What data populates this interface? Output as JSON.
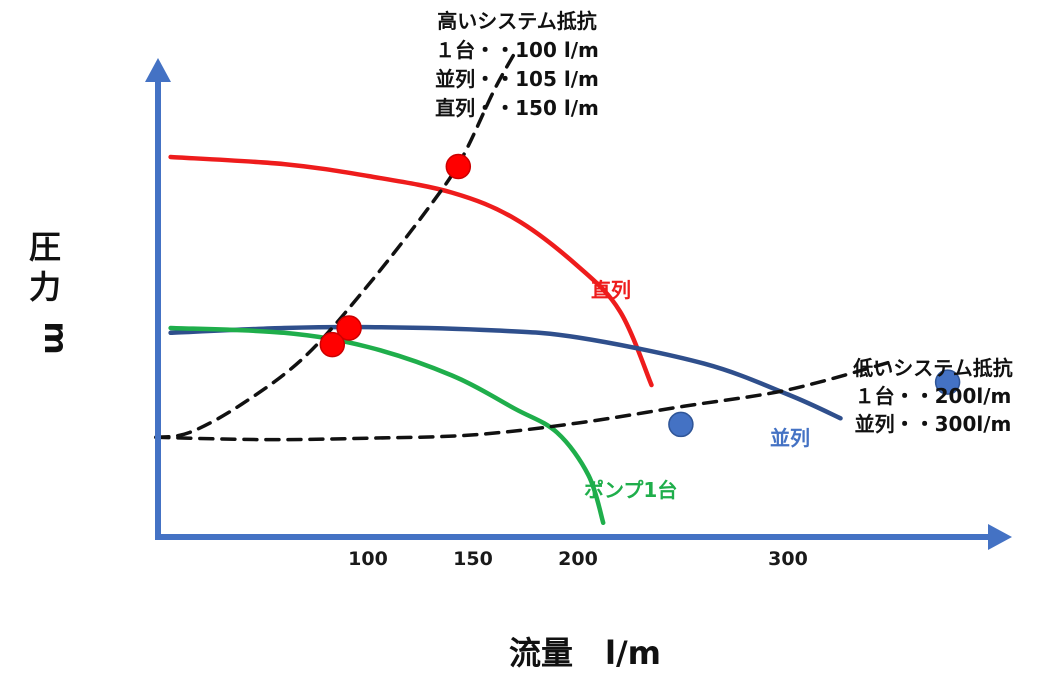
{
  "chart_data": {
    "type": "line",
    "title": "",
    "xlabel": "流量　l/m",
    "ylabel_lines": [
      "圧",
      "力",
      "m"
    ],
    "x_ticks": [
      {
        "value": 100,
        "label": "100"
      },
      {
        "value": 150,
        "label": "150"
      },
      {
        "value": 200,
        "label": "200"
      },
      {
        "value": 300,
        "label": "300"
      }
    ],
    "x_range": [
      0,
      400
    ],
    "y_range": [
      0,
      100
    ],
    "grid": false,
    "axis_color": "#4472c4",
    "series": [
      {
        "name": "直列",
        "style": "solid",
        "color": "#ee1c1c",
        "points": [
          [
            6,
            80
          ],
          [
            60,
            78.5
          ],
          [
            100,
            76
          ],
          [
            140,
            72.5
          ],
          [
            170,
            67
          ],
          [
            200,
            57
          ],
          [
            220,
            47.5
          ],
          [
            235,
            32
          ]
        ],
        "label": "直列"
      },
      {
        "name": "並列",
        "style": "solid",
        "color": "#2f4f8c",
        "points": [
          [
            6,
            43
          ],
          [
            60,
            44
          ],
          [
            100,
            44.2
          ],
          [
            160,
            43.5
          ],
          [
            200,
            42
          ],
          [
            260,
            36.5
          ],
          [
            300,
            30
          ],
          [
            325,
            25
          ]
        ],
        "label": "並列"
      },
      {
        "name": "ポンプ1台",
        "style": "solid",
        "color": "#1fae4b",
        "points": [
          [
            6,
            44
          ],
          [
            60,
            43
          ],
          [
            100,
            40
          ],
          [
            140,
            34
          ],
          [
            170,
            27
          ],
          [
            190,
            22
          ],
          [
            205,
            13
          ],
          [
            212,
            3
          ]
        ],
        "label": "ポンプ1台"
      },
      {
        "style": "dashed",
        "color": "#111111",
        "points": [
          [
            -1,
            21
          ],
          [
            15,
            22
          ],
          [
            40,
            28
          ],
          [
            70,
            38
          ],
          [
            100,
            53
          ],
          [
            130,
            70
          ],
          [
            145,
            80
          ],
          [
            160,
            94
          ],
          [
            170,
            102
          ]
        ]
      },
      {
        "style": "dashed",
        "color": "#111111",
        "points": [
          [
            -1,
            21
          ],
          [
            50,
            20.5
          ],
          [
            100,
            20.8
          ],
          [
            150,
            21.5
          ],
          [
            200,
            24
          ],
          [
            250,
            27.5
          ],
          [
            300,
            31
          ],
          [
            350,
            37
          ]
        ]
      }
    ],
    "markers": [
      {
        "x": 143,
        "y": 78,
        "color": "#ff0000",
        "stroke": "#cc0000"
      },
      {
        "x": 91,
        "y": 44,
        "color": "#ff0000",
        "stroke": "#cc0000"
      },
      {
        "x": 83,
        "y": 40.5,
        "color": "#ff0000",
        "stroke": "#cc0000"
      },
      {
        "x": 249,
        "y": 23.7,
        "color": "#4472c4",
        "stroke": "#2f5597"
      },
      {
        "x": 376,
        "y": 32.6,
        "color": "#4472c4",
        "stroke": "#2f5597"
      }
    ],
    "annotations": {
      "high_resistance": [
        "高いシステム抵抗",
        "１台・・100 l/m",
        "並列・・105 l/m",
        "直列・・150 l/m"
      ],
      "low_resistance": [
        "低いシステム抵抗",
        "１台・・200l/m",
        "並列・・300l/m"
      ]
    }
  }
}
